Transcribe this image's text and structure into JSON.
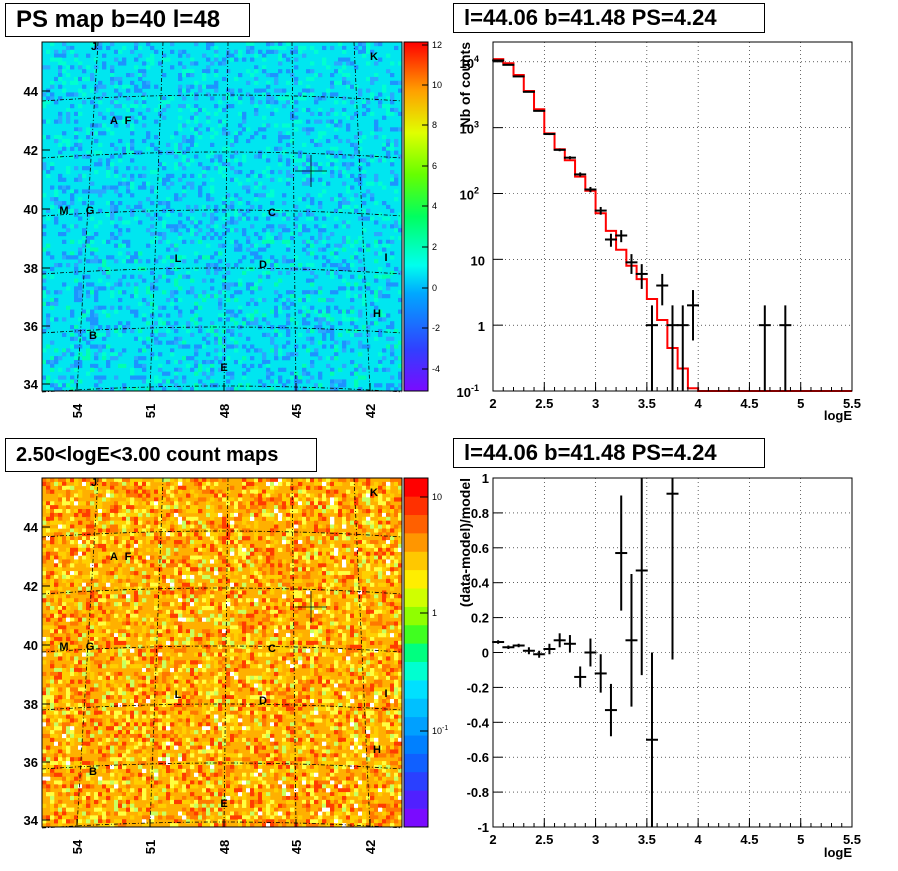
{
  "panels": {
    "ps_map_title": "PS map b=40 l=48",
    "spectrum_title": "l=44.06 b=41.48 PS=4.24",
    "count_map_title": "2.50<logE<3.00 count maps",
    "residual_title": "l=44.06 b=41.48 PS=4.24"
  },
  "colors": {
    "data": "#000000",
    "model": "#ff0000",
    "grid": "#000000"
  },
  "sky_maps": {
    "x_ticks": [
      "54",
      "51",
      "48",
      "45",
      "42"
    ],
    "y_ticks": [
      "44",
      "42",
      "40",
      "38",
      "36",
      "34"
    ],
    "source_labels": [
      "J",
      "K",
      "A",
      "F",
      "M",
      "G",
      "C",
      "L",
      "D",
      "I",
      "H",
      "B",
      "E"
    ],
    "ps_colorbar_ticks": [
      "12",
      "10",
      "8",
      "6",
      "4",
      "2",
      "0",
      "-2",
      "-4"
    ],
    "count_colorbar_ticks": [
      "10",
      "1",
      "10-1"
    ],
    "marker": {
      "l": 44.06,
      "b": 41.48
    }
  },
  "chart_data": [
    {
      "type": "line",
      "title": "l=44.06 b=41.48 PS=4.24",
      "xlabel": "logE",
      "ylabel": "Nb of counts",
      "xlim": [
        2,
        5.5
      ],
      "ylim": [
        0.1,
        20000
      ],
      "yscale": "log",
      "x_ticks": [
        "2",
        "2.5",
        "3",
        "3.5",
        "4",
        "4.5",
        "5",
        "5.5"
      ],
      "y_ticks": [
        "10^4",
        "10^3",
        "10^2",
        "10",
        "1",
        "10^-1"
      ],
      "grid": true,
      "series": [
        {
          "kind": "data",
          "x": [
            2.05,
            2.15,
            2.25,
            2.35,
            2.45,
            2.55,
            2.65,
            2.75,
            2.85,
            2.95,
            3.05,
            3.15,
            3.25,
            3.35,
            3.45,
            3.55,
            3.65,
            3.75,
            3.85,
            3.95,
            4.65,
            4.85
          ],
          "y": [
            10500,
            9000,
            6000,
            3500,
            1800,
            800,
            460,
            350,
            195,
            115,
            55,
            20,
            23,
            9,
            6,
            1,
            4,
            1,
            1,
            2,
            1,
            1
          ]
        },
        {
          "kind": "model",
          "edges": [
            2.0,
            2.1,
            2.2,
            2.3,
            2.4,
            2.5,
            2.6,
            2.7,
            2.8,
            2.9,
            3.0,
            3.1,
            3.2,
            3.3,
            3.4,
            3.5,
            3.6,
            3.7,
            3.8,
            3.9,
            4.0,
            5.5
          ],
          "y": [
            11000,
            9500,
            6300,
            3600,
            1900,
            820,
            470,
            320,
            180,
            110,
            50,
            27,
            14,
            8,
            5,
            2.5,
            1.2,
            0.45,
            0.22,
            0.11,
            0.1
          ]
        }
      ]
    },
    {
      "type": "scatter",
      "title": "l=44.06 b=41.48 PS=4.24",
      "xlabel": "logE",
      "ylabel": "(data-model)/model",
      "xlim": [
        2,
        5.5
      ],
      "ylim": [
        -1,
        1
      ],
      "x_ticks": [
        "2",
        "2.5",
        "3",
        "3.5",
        "4",
        "4.5",
        "5",
        "5.5"
      ],
      "y_ticks": [
        "1",
        "0.8",
        "0.6",
        "0.4",
        "0.2",
        "0",
        "-0.2",
        "-0.4",
        "-0.6",
        "-0.8",
        "-1"
      ],
      "grid": true,
      "series": [
        {
          "kind": "residual",
          "x": [
            2.05,
            2.15,
            2.25,
            2.35,
            2.45,
            2.55,
            2.65,
            2.75,
            2.85,
            2.95,
            3.05,
            3.15,
            3.25,
            3.35,
            3.45,
            3.55,
            3.75
          ],
          "y": [
            0.06,
            0.03,
            0.04,
            0.01,
            -0.01,
            0.02,
            0.07,
            0.05,
            -0.14,
            0.0,
            -0.12,
            -0.33,
            0.57,
            0.07,
            0.47,
            -0.5,
            0.91
          ],
          "err": [
            0.01,
            0.01,
            0.01,
            0.02,
            0.02,
            0.03,
            0.04,
            0.05,
            0.06,
            0.08,
            0.11,
            0.15,
            0.33,
            0.38,
            0.6,
            0.5,
            0.95
          ]
        }
      ]
    }
  ]
}
